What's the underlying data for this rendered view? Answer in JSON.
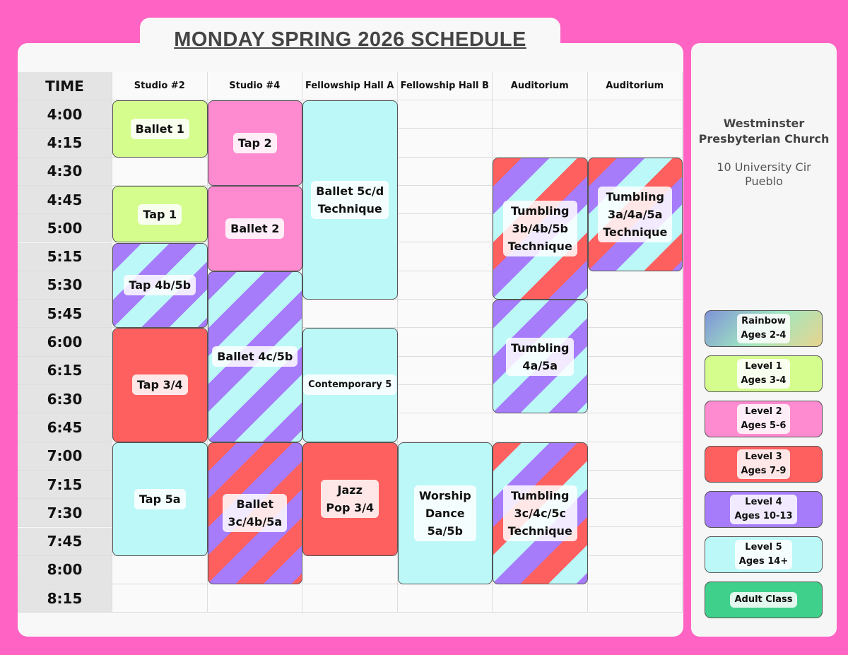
{
  "title": "MONDAY SPRING 2026 SCHEDULE",
  "time_header": "TIME",
  "columns": [
    "Studio #2",
    "Studio #4",
    "Fellowship Hall A",
    "Fellowship Hall B",
    "Auditorium",
    "Auditorium"
  ],
  "times": [
    "4:00",
    "4:15",
    "4:30",
    "4:45",
    "5:00",
    "5:15",
    "5:30",
    "5:45",
    "6:00",
    "6:15",
    "6:30",
    "6:45",
    "7:00",
    "7:15",
    "7:30",
    "7:45",
    "8:00",
    "8:15"
  ],
  "colors": {
    "level1": "#d4fd8d",
    "level2": "#fe8bd0",
    "level3": "#fe5f5f",
    "level4": "#a67cfb",
    "level5": "#bcf8f8",
    "adult": "#3fd08b"
  },
  "classes": [
    {
      "name": "Ballet 1",
      "column": 0,
      "start": "4:00",
      "end": "4:30",
      "colors": [
        "#d4fd8d"
      ]
    },
    {
      "name": "Tap 1",
      "column": 0,
      "start": "4:45",
      "end": "5:15",
      "colors": [
        "#d4fd8d"
      ]
    },
    {
      "name": "Tap 4b/5b",
      "column": 0,
      "start": "5:15",
      "end": "6:00",
      "colors": [
        "#a67cfb",
        "#bcf8f8"
      ]
    },
    {
      "name": "Tap 3/4",
      "column": 0,
      "start": "6:00",
      "end": "7:00",
      "colors": [
        "#fe5f5f"
      ]
    },
    {
      "name": "Tap 5a",
      "column": 0,
      "start": "7:00",
      "end": "8:00",
      "colors": [
        "#bcf8f8"
      ]
    },
    {
      "name": "Tap 2",
      "column": 1,
      "start": "4:00",
      "end": "4:45",
      "colors": [
        "#fe8bd0"
      ]
    },
    {
      "name": "Ballet 2",
      "column": 1,
      "start": "4:45",
      "end": "5:30",
      "colors": [
        "#fe8bd0"
      ]
    },
    {
      "name": "Ballet 4c/5b",
      "column": 1,
      "start": "5:30",
      "end": "7:00",
      "colors": [
        "#a67cfb",
        "#bcf8f8"
      ]
    },
    {
      "name": "Ballet\n3c/4b/5a",
      "column": 1,
      "start": "7:00",
      "end": "8:15",
      "colors": [
        "#fe5f5f",
        "#a67cfb"
      ]
    },
    {
      "name": "Ballet 5c/d\nTechnique",
      "column": 2,
      "start": "4:00",
      "end": "5:45",
      "colors": [
        "#bcf8f8"
      ]
    },
    {
      "name": "Contemporary 5",
      "column": 2,
      "start": "6:00",
      "end": "7:00",
      "colors": [
        "#bcf8f8"
      ]
    },
    {
      "name": "Jazz\nPop 3/4",
      "column": 2,
      "start": "7:00",
      "end": "8:00",
      "colors": [
        "#fe5f5f"
      ]
    },
    {
      "name": "Worship\nDance\n5a/5b",
      "column": 3,
      "start": "7:00",
      "end": "8:15",
      "colors": [
        "#bcf8f8"
      ]
    },
    {
      "name": "Tumbling\n3b/4b/5b\nTechnique",
      "column": 4,
      "start": "4:30",
      "end": "5:45",
      "colors": [
        "#fe5f5f",
        "#a67cfb",
        "#bcf8f8"
      ]
    },
    {
      "name": "Tumbling\n4a/5a",
      "column": 4,
      "start": "5:45",
      "end": "6:45",
      "colors": [
        "#a67cfb",
        "#bcf8f8"
      ]
    },
    {
      "name": "Tumbling\n3c/4c/5c\nTechnique",
      "column": 4,
      "start": "7:00",
      "end": "8:15",
      "colors": [
        "#fe5f5f",
        "#bcf8f8",
        "#a67cfb"
      ]
    },
    {
      "name": "Tumbling\n3a/4a/5a\nTechnique",
      "column": 5,
      "start": "4:30",
      "end": "5:30",
      "colors": [
        "#fe5f5f",
        "#a67cfb",
        "#bcf8f8"
      ]
    }
  ],
  "sidebar": {
    "church": "Westminster\nPresbyterian Church",
    "address": "10 University Cir\nPueblo",
    "legend": [
      {
        "label": "Rainbow\nAges 2-4",
        "bg": "linear-gradient(135deg,#7f93d8,#9fe6c0 50%,#e8d48e)"
      },
      {
        "label": "Level 1\nAges 3-4",
        "bg": "#d4fd8d"
      },
      {
        "label": "Level 2\nAges 5-6",
        "bg": "#fe8bd0"
      },
      {
        "label": "Level 3\nAges 7-9",
        "bg": "#fe5f5f"
      },
      {
        "label": "Level 4\nAges 10-13",
        "bg": "#a67cfb"
      },
      {
        "label": "Level 5\nAges 14+",
        "bg": "#bcf8f8"
      },
      {
        "label": "Adult Class",
        "bg": "#3fd08b"
      }
    ]
  }
}
